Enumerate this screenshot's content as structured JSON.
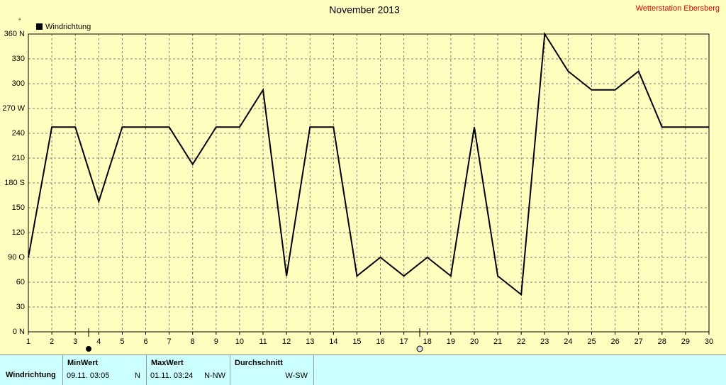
{
  "chart_data": {
    "type": "line",
    "title": "November 2013",
    "subtitle": "Wetterstation Ebersberg",
    "y_unit": "°",
    "x": [
      1,
      2,
      3,
      4,
      5,
      6,
      7,
      8,
      9,
      10,
      11,
      12,
      13,
      14,
      15,
      16,
      17,
      18,
      19,
      20,
      21,
      22,
      23,
      24,
      25,
      26,
      27,
      28,
      29,
      30
    ],
    "series": [
      {
        "name": "Windrichtung",
        "color": "#000000",
        "values": [
          90,
          247.5,
          247.5,
          157.5,
          247.5,
          247.5,
          247.5,
          202.5,
          247.5,
          247.5,
          292.5,
          67.5,
          247.5,
          247.5,
          67.5,
          90,
          67.5,
          90,
          67.5,
          247.5,
          67.5,
          45,
          360,
          315,
          292.5,
          292.5,
          315,
          247.5,
          247.5,
          247.5
        ]
      }
    ],
    "xlim": [
      1,
      30
    ],
    "xticks": [
      1,
      2,
      3,
      4,
      5,
      6,
      7,
      8,
      9,
      10,
      11,
      12,
      13,
      14,
      15,
      16,
      17,
      18,
      19,
      20,
      21,
      22,
      23,
      24,
      25,
      26,
      27,
      28,
      29,
      30
    ],
    "ylim": [
      0,
      360
    ],
    "yticks": [
      {
        "value": 0,
        "label": "0  N"
      },
      30,
      60,
      {
        "value": 90,
        "label": "90  O"
      },
      120,
      150,
      {
        "value": 180,
        "label": "180 S"
      },
      210,
      240,
      {
        "value": 270,
        "label": "270 W"
      },
      300,
      330,
      {
        "value": 360,
        "label": "360 N"
      }
    ],
    "grid": true,
    "legend": "top-left"
  },
  "table": {
    "header": [
      "MinWert",
      "MaxWert",
      "Durchschnitt"
    ],
    "rows": [
      [
        "Windrichtung",
        "09.11.  03:05",
        "N",
        "01.11.  03:24",
        "N-NW",
        "W-SW"
      ]
    ]
  }
}
